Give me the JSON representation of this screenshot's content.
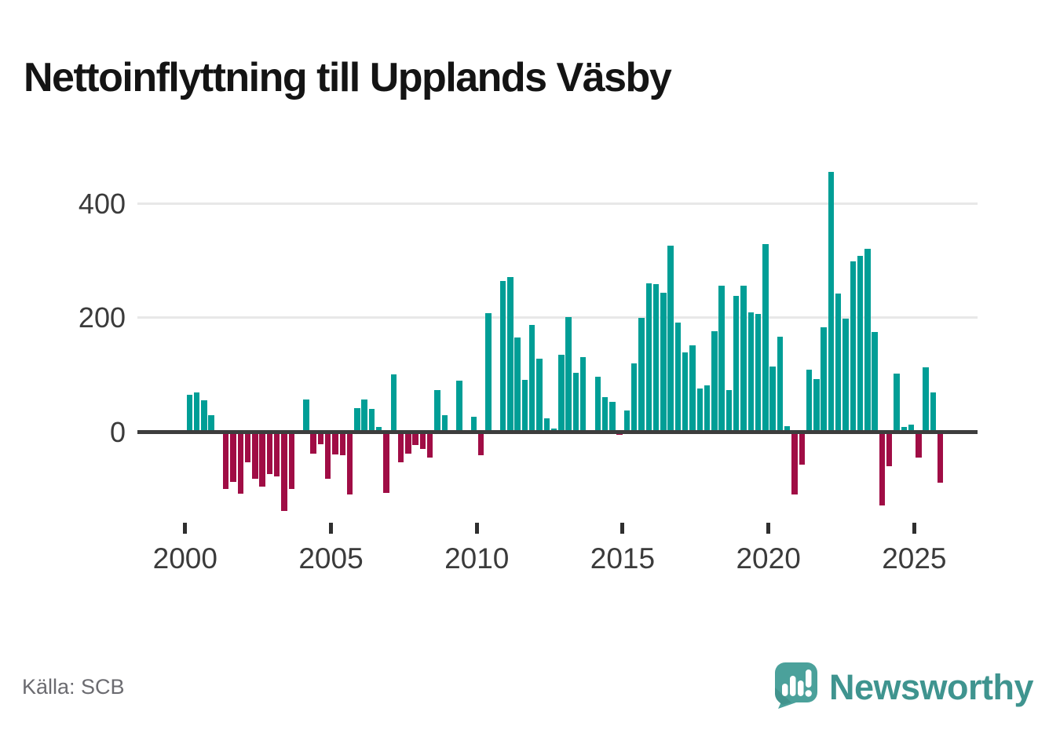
{
  "title": "Nettoinflyttning till Upplands Väsby",
  "source": "Källa: SCB",
  "logo": {
    "text": "Newsworthy"
  },
  "colors": {
    "positive": "#009e96",
    "negative": "#a00d45",
    "axis": "#3d3d3d",
    "grid": "#e8e8e8",
    "tick_text": "#3b3b3b",
    "title_text": "#141414",
    "source_text": "#6b6b70",
    "logo_teal": "#3f948f",
    "logo_bubble": "#4ba19b"
  },
  "chart_data": {
    "type": "bar",
    "frequency": "quarterly",
    "x": [
      "2000Q1",
      "2000Q2",
      "2000Q3",
      "2000Q4",
      "2001Q1",
      "2001Q2",
      "2001Q3",
      "2001Q4",
      "2002Q1",
      "2002Q2",
      "2002Q3",
      "2002Q4",
      "2003Q1",
      "2003Q2",
      "2003Q3",
      "2003Q4",
      "2004Q1",
      "2004Q2",
      "2004Q3",
      "2004Q4",
      "2005Q1",
      "2005Q2",
      "2005Q3",
      "2005Q4",
      "2006Q1",
      "2006Q2",
      "2006Q3",
      "2006Q4",
      "2007Q1",
      "2007Q2",
      "2007Q3",
      "2007Q4",
      "2008Q1",
      "2008Q2",
      "2008Q3",
      "2008Q4",
      "2009Q1",
      "2009Q2",
      "2009Q3",
      "2009Q4",
      "2010Q1",
      "2010Q2",
      "2010Q3",
      "2010Q4",
      "2011Q1",
      "2011Q2",
      "2011Q3",
      "2011Q4",
      "2012Q1",
      "2012Q2",
      "2012Q3",
      "2012Q4",
      "2013Q1",
      "2013Q2",
      "2013Q3",
      "2013Q4",
      "2014Q1",
      "2014Q2",
      "2014Q3",
      "2014Q4",
      "2015Q1",
      "2015Q2",
      "2015Q3",
      "2015Q4",
      "2016Q1",
      "2016Q2",
      "2016Q3",
      "2016Q4",
      "2017Q1",
      "2017Q2",
      "2017Q3",
      "2017Q4",
      "2018Q1",
      "2018Q2",
      "2018Q3",
      "2018Q4",
      "2019Q1",
      "2019Q2",
      "2019Q3",
      "2019Q4",
      "2020Q1",
      "2020Q2",
      "2020Q3",
      "2020Q4",
      "2021Q1",
      "2021Q2",
      "2021Q3",
      "2021Q4",
      "2022Q1",
      "2022Q2",
      "2022Q3",
      "2022Q4",
      "2023Q1",
      "2023Q2",
      "2023Q3",
      "2023Q4",
      "2024Q1",
      "2024Q2",
      "2024Q3",
      "2024Q4",
      "2025Q1",
      "2025Q2",
      "2025Q3",
      "2025Q4"
    ],
    "values": [
      65,
      69,
      55,
      29,
      0,
      -101,
      -88,
      -109,
      -54,
      -83,
      -97,
      -74,
      -78,
      -139,
      -100,
      0,
      57,
      -39,
      -22,
      -83,
      -40,
      -42,
      -110,
      42,
      56,
      40,
      8,
      -108,
      101,
      -54,
      -38,
      -23,
      -31,
      -46,
      73,
      29,
      0,
      89,
      0,
      26,
      -41,
      208,
      0,
      264,
      272,
      166,
      91,
      187,
      128,
      24,
      6,
      135,
      201,
      104,
      131,
      0,
      96,
      60,
      53,
      -6,
      37,
      120,
      200,
      261,
      259,
      244,
      326,
      191,
      139,
      151,
      76,
      82,
      177,
      256,
      73,
      239,
      257,
      210,
      207,
      330,
      115,
      167,
      9,
      -110,
      -58,
      109,
      93,
      183,
      456,
      242,
      199,
      299,
      309,
      321,
      175,
      -129,
      -60,
      102,
      8,
      12,
      -46,
      113,
      69,
      -90
    ],
    "title": "Nettoinflyttning till Upplands Väsby",
    "xlabel": "",
    "ylabel": "",
    "yticks": [
      0,
      200,
      400
    ],
    "xticks": [
      2000,
      2005,
      2010,
      2015,
      2020,
      2025
    ],
    "ylim": [
      -160,
      480
    ],
    "grid": true,
    "legend_position": "none",
    "positive_color": "#009e96",
    "negative_color": "#a00d45"
  }
}
